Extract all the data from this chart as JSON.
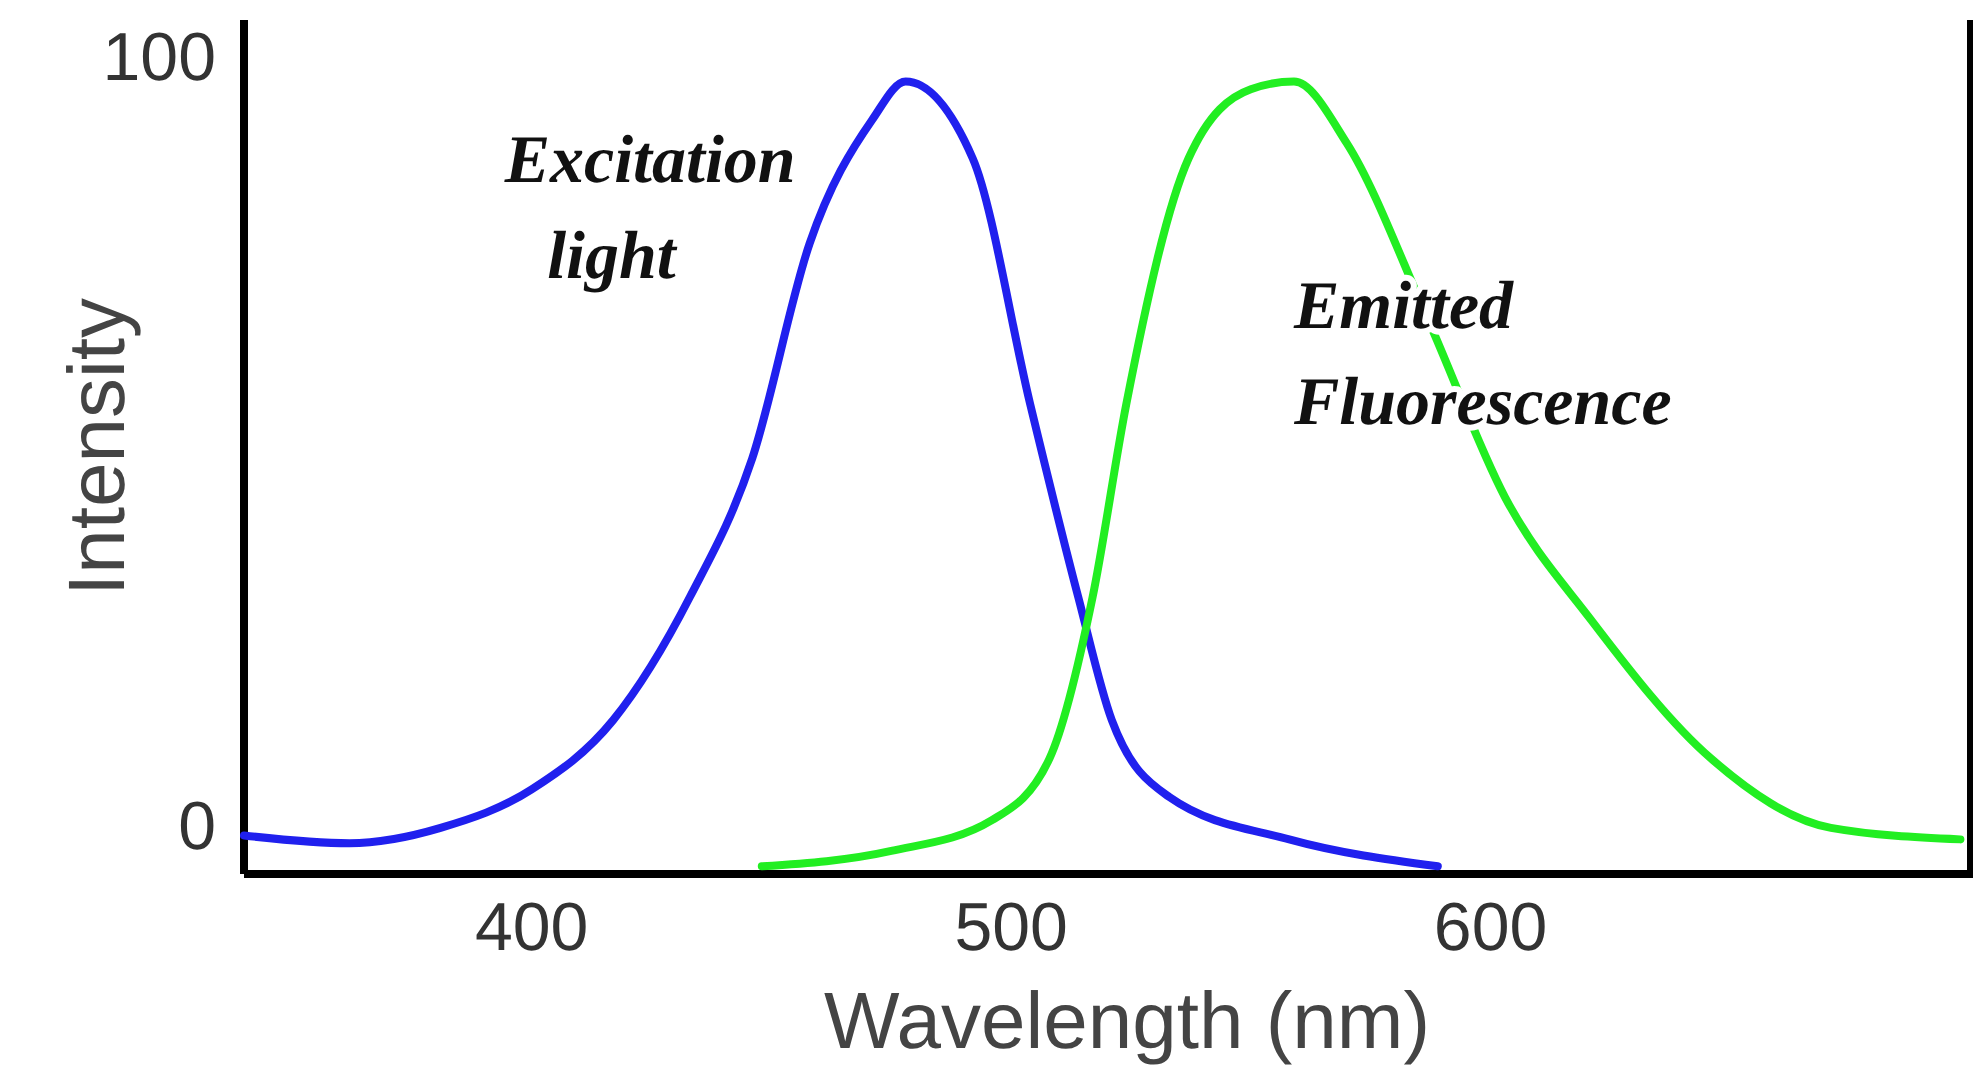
{
  "chart_data": {
    "type": "line",
    "xlabel": "Wavelength (nm)",
    "ylabel": "Intensity",
    "xlim": [
      340,
      700
    ],
    "ylim": [
      -5,
      106
    ],
    "xticks": [
      400,
      500,
      600
    ],
    "yticks": [
      0,
      100
    ],
    "grid": false,
    "legend": false,
    "marker": "none",
    "line_style": "solid",
    "series": [
      {
        "name": "Excitation light",
        "color": "#2020ee",
        "x": [
          340,
          362,
          381,
          400,
          417,
          433,
          446,
          458,
          471,
          478,
          492,
          504,
          514,
          521,
          533,
          558,
          589
        ],
        "values": [
          0,
          -1,
          1,
          6,
          15,
          31,
          49,
          77,
          93,
          98,
          88,
          56,
          31,
          15,
          5,
          -0.5,
          -4
        ]
      },
      {
        "name": "Emitted Fluorescence",
        "color": "#22ee22",
        "x": [
          448,
          475,
          496,
          508,
          517,
          524,
          537,
          550,
          559,
          570,
          587,
          603,
          621,
          646,
          671,
          698
        ],
        "values": [
          -4,
          -2,
          2,
          10,
          31,
          56,
          88,
          97,
          98,
          90,
          67,
          44,
          28,
          10,
          1,
          -0.5
        ]
      }
    ]
  }
}
